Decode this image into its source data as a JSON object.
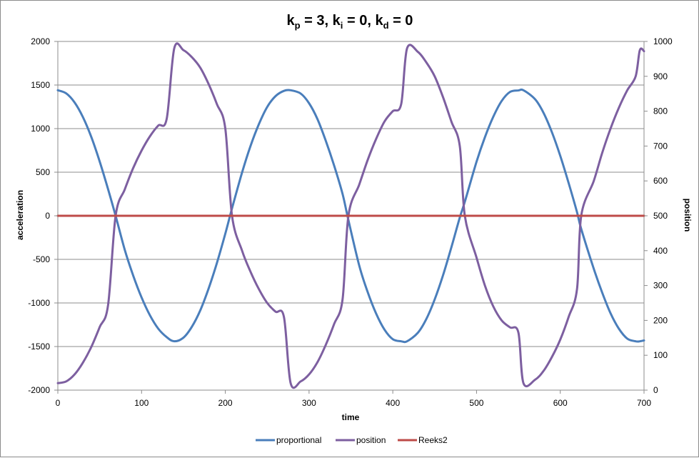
{
  "chart_data": {
    "type": "line",
    "title": {
      "parts": [
        {
          "text": "k",
          "sub": "p",
          "after": " = 3, "
        },
        {
          "text": "k",
          "sub": "i",
          "after": " = 0, "
        },
        {
          "text": "k",
          "sub": "d",
          "after": " = 0"
        }
      ]
    },
    "xlabel": "time",
    "ylabel_left": "acceleration",
    "ylabel_right": "position",
    "xlim": [
      0,
      700
    ],
    "ylim_left": [
      -2000,
      2000
    ],
    "ylim_right": [
      0,
      1000
    ],
    "x_ticks": [
      0,
      100,
      200,
      300,
      400,
      500,
      600,
      700
    ],
    "y_left_ticks": [
      -2000,
      -1500,
      -1000,
      -500,
      0,
      500,
      1000,
      1500,
      2000
    ],
    "y_right_ticks": [
      0,
      100,
      200,
      300,
      400,
      500,
      600,
      700,
      800,
      900,
      1000
    ],
    "grid": "horizontal",
    "legend_position": "bottom",
    "series": [
      {
        "name": "proportional",
        "axis": "left",
        "color": "#4a7ebb",
        "x": [
          0,
          10,
          20,
          30,
          40,
          50,
          60,
          69,
          80,
          90,
          100,
          110,
          120,
          130,
          139,
          150,
          160,
          170,
          180,
          190,
          200,
          208,
          220,
          230,
          240,
          250,
          260,
          270,
          278,
          290,
          300,
          310,
          320,
          330,
          340,
          347,
          360,
          370,
          380,
          390,
          400,
          410,
          417,
          430,
          440,
          450,
          460,
          470,
          480,
          486,
          500,
          510,
          520,
          530,
          540,
          550,
          556,
          570,
          580,
          590,
          600,
          610,
          620,
          625,
          640,
          650,
          660,
          670,
          680,
          690,
          695,
          700
        ],
        "values": [
          1440,
          1404,
          1300,
          1131,
          903,
          622,
          305,
          0,
          -393,
          -686,
          -937,
          -1142,
          -1296,
          -1392,
          -1440,
          -1398,
          -1274,
          -1087,
          -836,
          -540,
          -205,
          85,
          496,
          798,
          1049,
          1248,
          1373,
          1433,
          1440,
          1402,
          1291,
          1110,
          860,
          574,
          251,
          -50,
          -574,
          -875,
          -1120,
          -1305,
          -1416,
          -1440,
          -1440,
          -1341,
          -1185,
          -960,
          -682,
          -360,
          -20,
          160,
          620,
          901,
          1136,
          1317,
          1421,
          1438,
          1440,
          1336,
          1181,
          959,
          687,
          375,
          41,
          -150,
          -608,
          -880,
          -1118,
          -1296,
          -1409,
          -1440,
          -1440,
          -1430
        ]
      },
      {
        "name": "position",
        "axis": "right",
        "color": "#7d5fa0",
        "x": [
          0,
          10,
          20,
          30,
          40,
          50,
          60,
          69,
          80,
          90,
          100,
          110,
          120,
          130,
          139,
          150,
          160,
          170,
          180,
          190,
          200,
          208,
          220,
          230,
          240,
          250,
          260,
          270,
          278,
          290,
          300,
          310,
          320,
          330,
          340,
          347,
          360,
          370,
          380,
          390,
          400,
          410,
          417,
          430,
          440,
          450,
          460,
          470,
          480,
          486,
          500,
          510,
          520,
          530,
          540,
          550,
          556,
          570,
          580,
          590,
          600,
          610,
          620,
          625,
          640,
          650,
          660,
          670,
          680,
          690,
          695,
          700
        ],
        "values": [
          20,
          25,
          45,
          79,
          124,
          181,
          244,
          500,
          576,
          637,
          687,
          728,
          759,
          778,
          980,
          975,
          955,
          925,
          878,
          820,
          750,
          500,
          400,
          340,
          290,
          250,
          225,
          210,
          20,
          25,
          45,
          80,
          130,
          190,
          260,
          500,
          590,
          660,
          720,
          770,
          800,
          820,
          980,
          970,
          940,
          900,
          840,
          770,
          700,
          500,
          380,
          300,
          240,
          200,
          180,
          165,
          20,
          30,
          55,
          95,
          145,
          210,
          290,
          500,
          600,
          680,
          750,
          810,
          860,
          900,
          975,
          972
        ]
      },
      {
        "name": "Reeks2",
        "axis": "left",
        "color": "#be4b48",
        "x": [
          0,
          700
        ],
        "values": [
          0,
          0
        ]
      }
    ]
  }
}
